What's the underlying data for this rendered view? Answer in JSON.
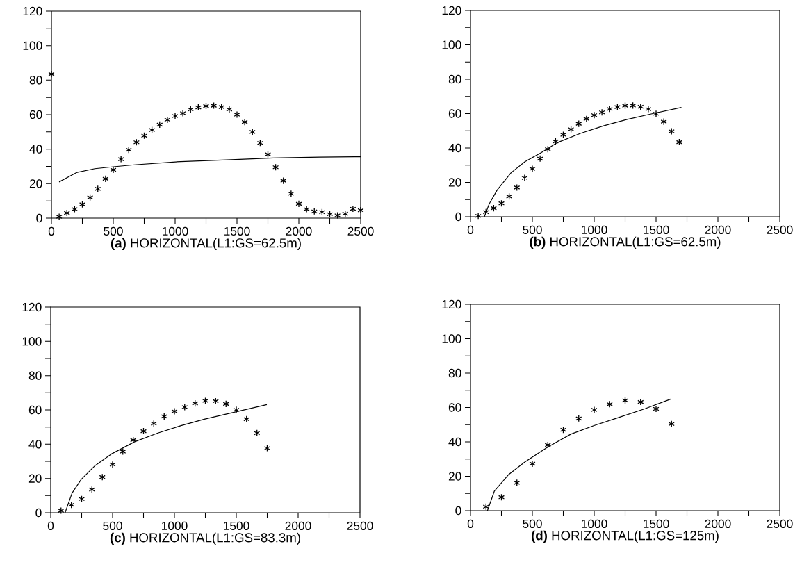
{
  "chart_data": [
    {
      "type": "scatter",
      "title": "**(a)** HORIZONTAL(L1:GS=62.5m)",
      "xlim": [
        0,
        2500
      ],
      "ylim": [
        0,
        120
      ],
      "xticks": [
        0,
        {
          "value": 250,
          "label": null
        },
        500,
        {
          "value": 750,
          "label": null
        },
        1000,
        {
          "value": 1250,
          "label": null
        },
        1500,
        {
          "value": 1750,
          "label": null
        },
        2000,
        {
          "value": 2250,
          "label": null
        },
        2500
      ],
      "yticks": [
        0,
        {
          "value": 10,
          "label": null
        },
        20,
        {
          "value": 30,
          "label": null
        },
        40,
        {
          "value": 50,
          "label": null
        },
        60,
        {
          "value": 70,
          "label": null
        },
        80,
        {
          "value": 90,
          "label": null
        },
        100,
        {
          "value": 110,
          "label": null
        },
        120
      ],
      "series": [
        {
          "marker": "cross",
          "color": "#000000",
          "x": [
            0,
            62.5,
            125,
            187.5,
            250,
            312.5,
            375,
            437.5,
            500,
            562.5,
            625,
            687.5,
            750,
            812.5,
            875,
            937.5,
            1000,
            1062.5,
            1125,
            1187.5,
            1250,
            1312.5,
            1375,
            1437.5,
            1500,
            1562.5,
            1625,
            1687.5,
            1750,
            1812.5,
            1875,
            1937.5,
            2000,
            2062.5,
            2125,
            2187.5,
            2250,
            2312.5,
            2375,
            2437.5,
            2500
          ],
          "values": [
            83.5,
            0.8,
            3,
            5.2,
            8,
            12,
            17,
            22.8,
            28,
            34.2,
            39.6,
            44,
            47.8,
            51.1,
            54.2,
            57,
            59.2,
            60.8,
            63,
            64.2,
            65,
            65.2,
            64.4,
            63,
            60,
            55.7,
            50,
            43.6,
            37,
            29.5,
            21.7,
            14.2,
            8.3,
            5.2,
            3.9,
            3.5,
            2.3,
            1.6,
            2.6,
            5.4,
            4.6
          ]
        },
        {
          "type": "line",
          "line_style": "solid",
          "color": "#000000",
          "x": [
            62,
            202,
            352,
            502,
            670,
            1045,
            1419,
            1793,
            2167,
            2500
          ],
          "values": [
            21,
            26.4,
            28.7,
            29.8,
            30.9,
            32.8,
            33.8,
            34.9,
            35.4,
            35.6
          ]
        }
      ]
    },
    {
      "type": "scatter",
      "title": "**(b)** HORIZONTAL(L1:GS=62.5m)",
      "xlim": [
        0,
        2500
      ],
      "ylim": [
        0,
        120
      ],
      "xticks": [
        0,
        {
          "value": 250,
          "label": null
        },
        500,
        {
          "value": 750,
          "label": null
        },
        1000,
        {
          "value": 1250,
          "label": null
        },
        1500,
        {
          "value": 1750,
          "label": null
        },
        2000,
        {
          "value": 2250,
          "label": null
        },
        2500
      ],
      "yticks": [
        0,
        {
          "value": 10,
          "label": null
        },
        20,
        {
          "value": 30,
          "label": null
        },
        40,
        {
          "value": 50,
          "label": null
        },
        60,
        {
          "value": 70,
          "label": null
        },
        80,
        {
          "value": 90,
          "label": null
        },
        100,
        {
          "value": 110,
          "label": null
        },
        120
      ],
      "series": [
        {
          "marker": "cross",
          "color": "#000000",
          "x": [
            62.5,
            125,
            187.5,
            250,
            312.5,
            375,
            437.5,
            500,
            562.5,
            625,
            687.5,
            750,
            812.5,
            875,
            937.5,
            1000,
            1062.5,
            1125,
            1187.5,
            1250,
            1312.5,
            1375,
            1437.5,
            1500,
            1562.5,
            1625,
            1687.5
          ],
          "values": [
            0.5,
            2.7,
            5,
            7.8,
            11.8,
            17,
            22.6,
            27.9,
            33.8,
            39.3,
            43.8,
            47.7,
            50.9,
            54.1,
            56.9,
            59.1,
            60.7,
            62.7,
            63.8,
            64.6,
            64.7,
            64,
            62.6,
            59.9,
            55.3,
            49.7,
            43.4
          ]
        },
        {
          "type": "line",
          "line_style": "solid",
          "color": "#000000",
          "x": [
            112,
            151,
            216,
            328,
            440,
            571,
            701,
            888,
            1075,
            1261,
            1448,
            1705
          ],
          "values": [
            0,
            7.5,
            15.6,
            25.6,
            32,
            37.3,
            43.1,
            48.5,
            52.9,
            56.5,
            59.6,
            63.6
          ]
        }
      ]
    },
    {
      "type": "scatter",
      "title": "**(c)** HORIZONTAL(L1:GS=83.3m)",
      "xlim": [
        0,
        2500
      ],
      "ylim": [
        0,
        120
      ],
      "xticks": [
        0,
        {
          "value": 250,
          "label": null
        },
        500,
        {
          "value": 750,
          "label": null
        },
        1000,
        {
          "value": 1250,
          "label": null
        },
        1500,
        {
          "value": 1750,
          "label": null
        },
        2000,
        {
          "value": 2250,
          "label": null
        },
        2500
      ],
      "yticks": [
        0,
        {
          "value": 10,
          "label": null
        },
        20,
        {
          "value": 30,
          "label": null
        },
        40,
        {
          "value": 50,
          "label": null
        },
        60,
        {
          "value": 70,
          "label": null
        },
        80,
        {
          "value": 90,
          "label": null
        },
        100,
        {
          "value": 110,
          "label": null
        },
        120
      ],
      "series": [
        {
          "marker": "cross",
          "color": "#000000",
          "x": [
            83,
            167,
            250,
            333,
            417,
            500,
            583,
            667,
            750,
            833,
            917,
            1000,
            1083,
            1167,
            1250,
            1333,
            1417,
            1500,
            1583,
            1667,
            1750
          ],
          "values": [
            1.2,
            4.6,
            8,
            13.5,
            20.8,
            28.1,
            35.7,
            42.4,
            47.6,
            52,
            56.2,
            59.2,
            61.6,
            63.8,
            65.3,
            65.1,
            63.5,
            60.1,
            54.6,
            46.5,
            37.7
          ]
        },
        {
          "type": "line",
          "line_style": "solid",
          "color": "#000000",
          "x": [
            116,
            172,
            247,
            360,
            491,
            678,
            866,
            1053,
            1241,
            1428,
            1747
          ],
          "values": [
            0,
            11.4,
            19.5,
            27.6,
            34.3,
            41.4,
            46.5,
            50.8,
            54.6,
            57.7,
            63.1
          ]
        }
      ]
    },
    {
      "type": "scatter",
      "title": "**(d)** HORIZONTAL(L1:GS=125m)",
      "xlim": [
        0,
        2500
      ],
      "ylim": [
        0,
        120
      ],
      "xticks": [
        0,
        {
          "value": 250,
          "label": null
        },
        500,
        {
          "value": 750,
          "label": null
        },
        1000,
        {
          "value": 1250,
          "label": null
        },
        1500,
        {
          "value": 1750,
          "label": null
        },
        2000,
        {
          "value": 2250,
          "label": null
        },
        2500
      ],
      "yticks": [
        0,
        {
          "value": 10,
          "label": null
        },
        20,
        {
          "value": 30,
          "label": null
        },
        40,
        {
          "value": 50,
          "label": null
        },
        60,
        {
          "value": 70,
          "label": null
        },
        80,
        {
          "value": 90,
          "label": null
        },
        100,
        {
          "value": 110,
          "label": null
        },
        120
      ],
      "series": [
        {
          "marker": "cross",
          "color": "#000000",
          "x": [
            125,
            250,
            375,
            500,
            625,
            750,
            875,
            1000,
            1125,
            1250,
            1375,
            1500,
            1625
          ],
          "values": [
            2.3,
            7.8,
            16.2,
            27.3,
            38.2,
            47,
            53.6,
            58.6,
            61.9,
            64.1,
            63.2,
            59.2,
            50.4
          ]
        },
        {
          "type": "line",
          "line_style": "solid",
          "color": "#000000",
          "x": [
            137,
            193,
            305,
            437,
            624,
            811,
            999,
            1186,
            1411,
            1623
          ],
          "values": [
            0,
            11.4,
            20.8,
            28.2,
            37,
            44.5,
            49.5,
            53.9,
            59.3,
            65
          ]
        }
      ]
    }
  ]
}
